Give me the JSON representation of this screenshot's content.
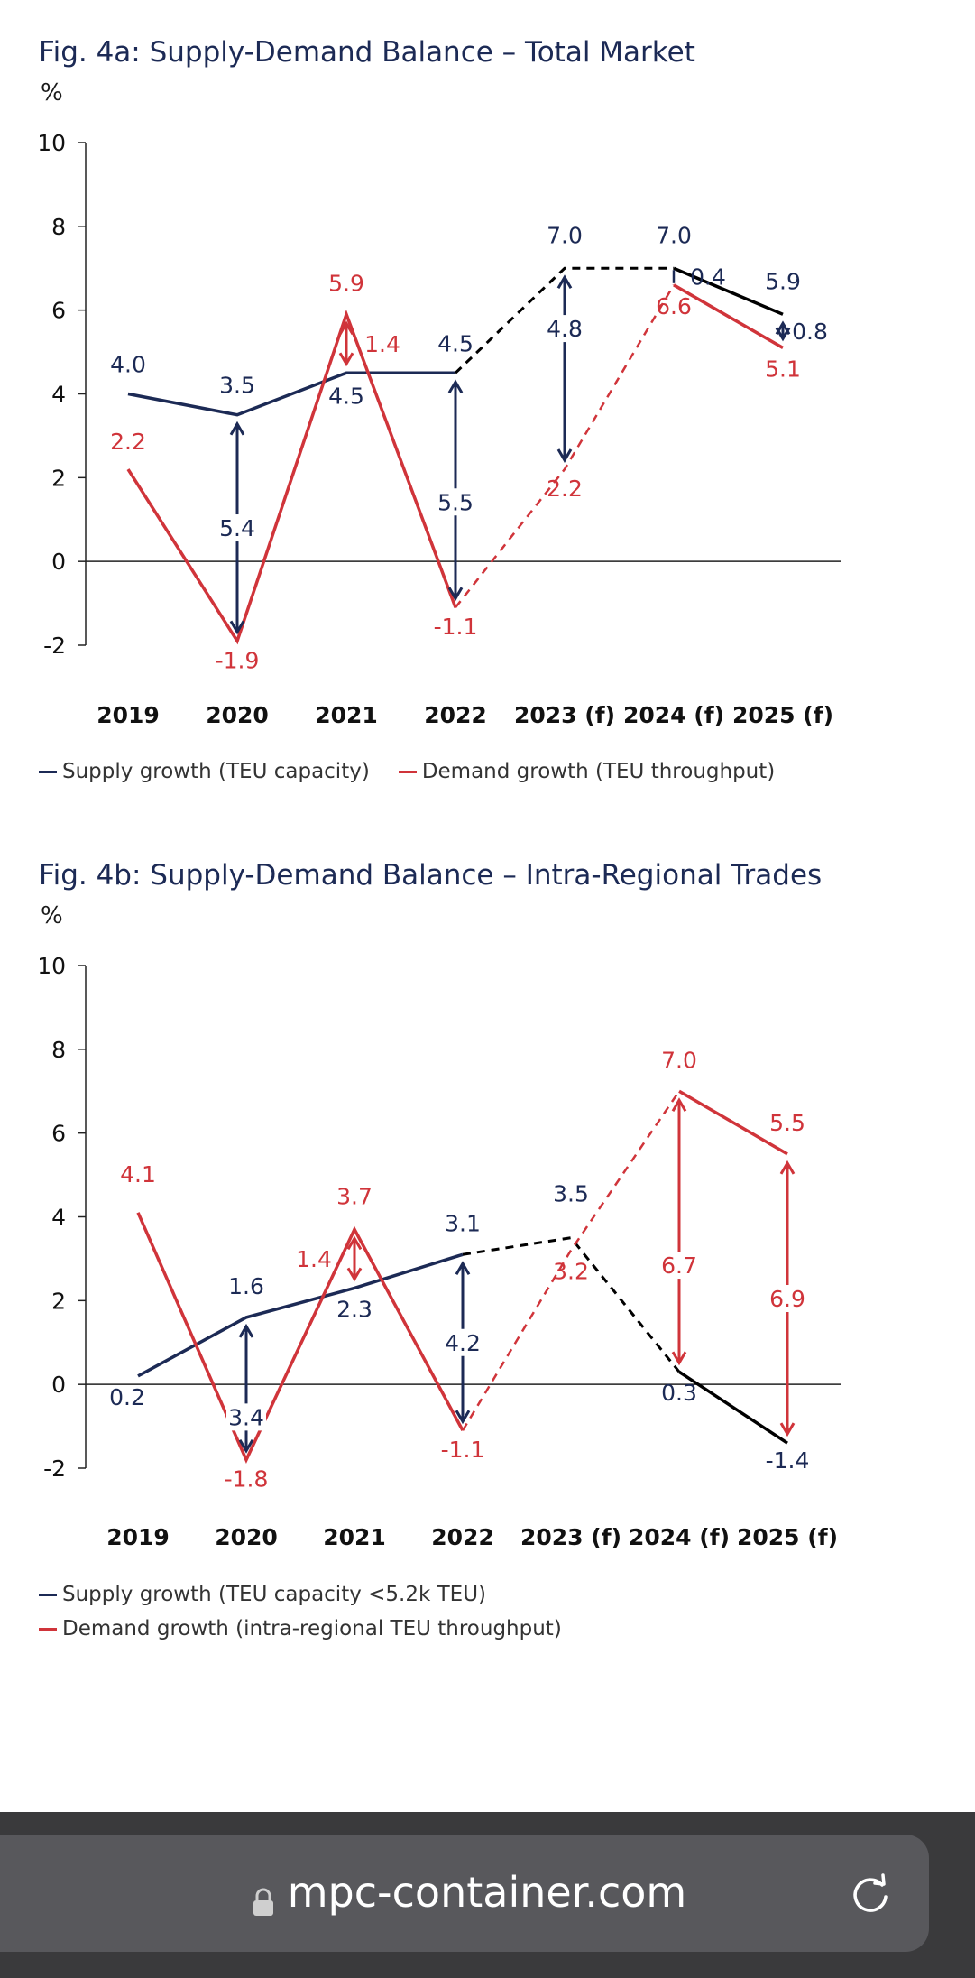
{
  "charts": [
    {
      "title": "Fig. 4a: Supply-Demand Balance – Total Market",
      "unit": "%",
      "legend": [
        {
          "label": "Supply growth (TEU capacity)",
          "color": "#1c2a55"
        },
        {
          "label": "Demand growth (TEU throughput)",
          "color": "#d0343a"
        }
      ]
    },
    {
      "title": "Fig. 4b: Supply-Demand Balance – Intra-Regional Trades",
      "unit": "%",
      "legend": [
        {
          "label": "Supply growth (TEU capacity <5.2k TEU)",
          "color": "#1c2a55"
        },
        {
          "label": "Demand growth (intra-regional TEU throughput)",
          "color": "#d0343a"
        }
      ]
    }
  ],
  "chart_data": [
    {
      "type": "line",
      "title": "Fig. 4a: Supply-Demand Balance – Total Market",
      "ylabel": "%",
      "ylim": [
        -2,
        10
      ],
      "yticks": [
        -2,
        0,
        2,
        4,
        6,
        8,
        10
      ],
      "categories": [
        "2019",
        "2020",
        "2021",
        "2022",
        "2023 (f)",
        "2024 (f)",
        "2025 (f)"
      ],
      "series": [
        {
          "name": "Supply growth (TEU capacity)",
          "values": [
            4.0,
            3.5,
            4.5,
            4.5,
            7.0,
            7.0,
            5.9
          ],
          "color": "#1c2a55",
          "forecast_color": "#000000"
        },
        {
          "name": "Demand growth (TEU throughput)",
          "values": [
            2.2,
            -1.9,
            5.9,
            -1.1,
            2.2,
            6.6,
            5.1
          ],
          "color": "#d0343a"
        }
      ],
      "gaps": [
        {
          "category": "2020",
          "value": "5.4",
          "color": "#1c2a55"
        },
        {
          "category": "2021",
          "value": "1.4",
          "color": "#d0343a"
        },
        {
          "category": "2022",
          "value": "5.5",
          "color": "#1c2a55"
        },
        {
          "category": "2023 (f)",
          "value": "4.8",
          "color": "#1c2a55"
        },
        {
          "category": "2024 (f)",
          "value": "0.4",
          "color": "#1c2a55"
        },
        {
          "category": "2025 (f)",
          "value": "0.8",
          "color": "#1c2a55"
        }
      ],
      "forecast_start_index": 3,
      "legend_position": "bottom-left"
    },
    {
      "type": "line",
      "title": "Fig. 4b: Supply-Demand Balance – Intra-Regional Trades",
      "ylabel": "%",
      "ylim": [
        -2,
        10
      ],
      "yticks": [
        -2,
        0,
        2,
        4,
        6,
        8,
        10
      ],
      "categories": [
        "2019",
        "2020",
        "2021",
        "2022",
        "2023 (f)",
        "2024 (f)",
        "2025 (f)"
      ],
      "series": [
        {
          "name": "Supply growth (TEU capacity <5.2k TEU)",
          "values": [
            0.2,
            1.6,
            2.3,
            3.1,
            3.5,
            0.3,
            -1.4
          ],
          "color": "#1c2a55",
          "forecast_color": "#000000"
        },
        {
          "name": "Demand growth (intra-regional TEU throughput)",
          "values": [
            4.1,
            -1.8,
            3.7,
            -1.1,
            3.2,
            7.0,
            5.5
          ],
          "color": "#d0343a"
        }
      ],
      "gaps": [
        {
          "category": "2020",
          "value": "3.4",
          "color": "#1c2a55"
        },
        {
          "category": "2021",
          "value": "1.4",
          "color": "#d0343a"
        },
        {
          "category": "2022",
          "value": "4.2",
          "color": "#1c2a55"
        },
        {
          "category": "2024 (f)",
          "value": "6.7",
          "color": "#d0343a"
        },
        {
          "category": "2025 (f)",
          "value": "6.9",
          "color": "#d0343a"
        }
      ],
      "forecast_start_index": 3,
      "legend_position": "bottom-left"
    }
  ],
  "browser": {
    "url": "mpc-container.com",
    "lock_icon": "lock-icon",
    "reload_icon": "reload-icon"
  }
}
